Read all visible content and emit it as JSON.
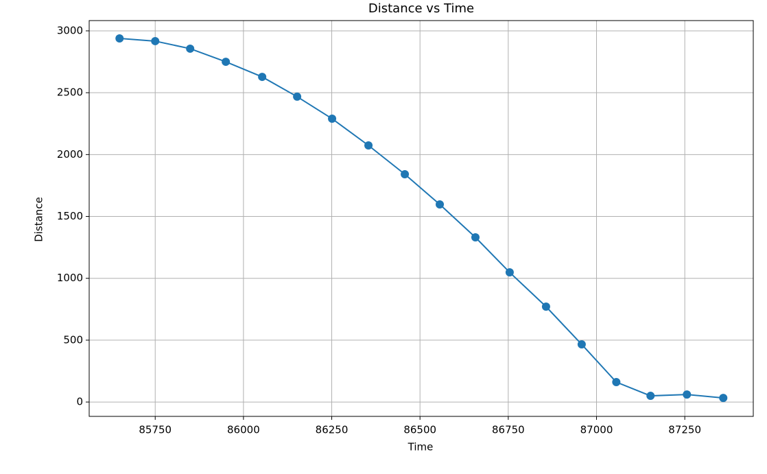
{
  "chart_data": {
    "type": "line",
    "title": "Distance vs Time",
    "xlabel": "Time",
    "ylabel": "Distance",
    "x": [
      85649,
      85750,
      85849,
      85950,
      86053,
      86152,
      86251,
      86354,
      86457,
      86556,
      86657,
      86754,
      86857,
      86958,
      87056,
      87153,
      87256,
      87359
    ],
    "series": [
      {
        "color": "#1f77b4",
        "values": [
          2939,
          2917,
          2856,
          2750,
          2628,
          2468,
          2290,
          2074,
          1841,
          1597,
          1331,
          1048,
          771,
          466,
          161,
          50,
          61,
          33
        ]
      }
    ],
    "xlim": [
      85563,
      87444
    ],
    "ylim": [
      -116,
      3083
    ],
    "xticks": [
      85750,
      86000,
      86250,
      86500,
      86750,
      87000,
      87250
    ],
    "yticks": [
      0,
      500,
      1000,
      1500,
      2000,
      2500,
      3000
    ],
    "grid": true,
    "markers": true
  }
}
